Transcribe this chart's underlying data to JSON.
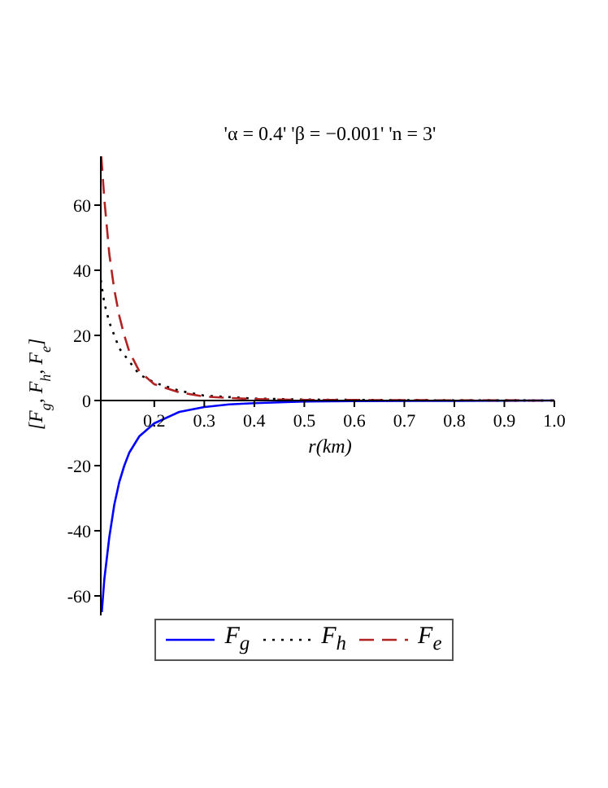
{
  "chart_data": {
    "type": "line",
    "title": "'α = 0.4' 'β = −0.001' 'n = 3'",
    "xlabel": "r(km)",
    "ylabel": "[F$_{g}$, F$_{h}$, F$_{e}$]",
    "xlim": [
      0.093,
      1.0
    ],
    "ylim": [
      -66,
      75
    ],
    "xticks": [
      0.2,
      0.3,
      0.4,
      0.5,
      0.6,
      0.7,
      0.8,
      0.9,
      {
        "value": 1.0,
        "label": "1.0"
      }
    ],
    "yticks": [
      -60,
      -40,
      -20,
      0,
      20,
      40,
      60
    ],
    "grid": false,
    "legend": "bottom",
    "marker": "none",
    "series": [
      {
        "name": "F$_{g}$",
        "color": "#0000ff",
        "line_style": "solid",
        "x": [
          0.095,
          0.1,
          0.11,
          0.12,
          0.13,
          0.14,
          0.15,
          0.17,
          0.2,
          0.25,
          0.3,
          0.35,
          0.4,
          0.5,
          0.6,
          0.8,
          1.0
        ],
        "values": [
          -65,
          -55,
          -42,
          -32,
          -25,
          -20,
          -16,
          -11,
          -7,
          -3.5,
          -2,
          -1.2,
          -0.8,
          -0.3,
          -0.2,
          -0.1,
          0
        ]
      },
      {
        "name": "F$_{h}$",
        "color": "#000000",
        "line_style": "dotted",
        "x": [
          0.093,
          0.1,
          0.11,
          0.12,
          0.13,
          0.15,
          0.17,
          0.2,
          0.25,
          0.3,
          0.4,
          0.5,
          0.7,
          1.0
        ],
        "values": [
          37,
          30,
          24,
          20,
          16,
          12,
          8,
          5.5,
          3,
          1.5,
          0.6,
          0.3,
          0.1,
          0
        ]
      },
      {
        "name": "F$_{e}$",
        "color": "#b22222",
        "line_style": "dashed",
        "x": [
          0.094,
          0.1,
          0.11,
          0.12,
          0.13,
          0.14,
          0.15,
          0.17,
          0.2,
          0.25,
          0.3,
          0.4,
          0.5,
          0.7,
          1.0
        ],
        "values": [
          75,
          62,
          45,
          34,
          26,
          20,
          15,
          9,
          5,
          2.5,
          1.2,
          0.4,
          0.2,
          0.1,
          0
        ]
      }
    ]
  }
}
